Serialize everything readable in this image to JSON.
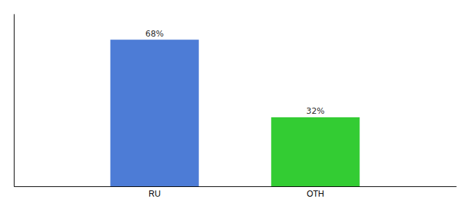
{
  "chart_data": {
    "type": "bar",
    "categories": [
      "RU",
      "OTH"
    ],
    "values": [
      68,
      32
    ],
    "value_labels": [
      "68%",
      "32%"
    ],
    "colors": [
      "#4d7cd6",
      "#33cc33"
    ],
    "ylim": [
      0,
      80
    ],
    "data_labels": true,
    "tick_labels": "x",
    "grid": false
  }
}
